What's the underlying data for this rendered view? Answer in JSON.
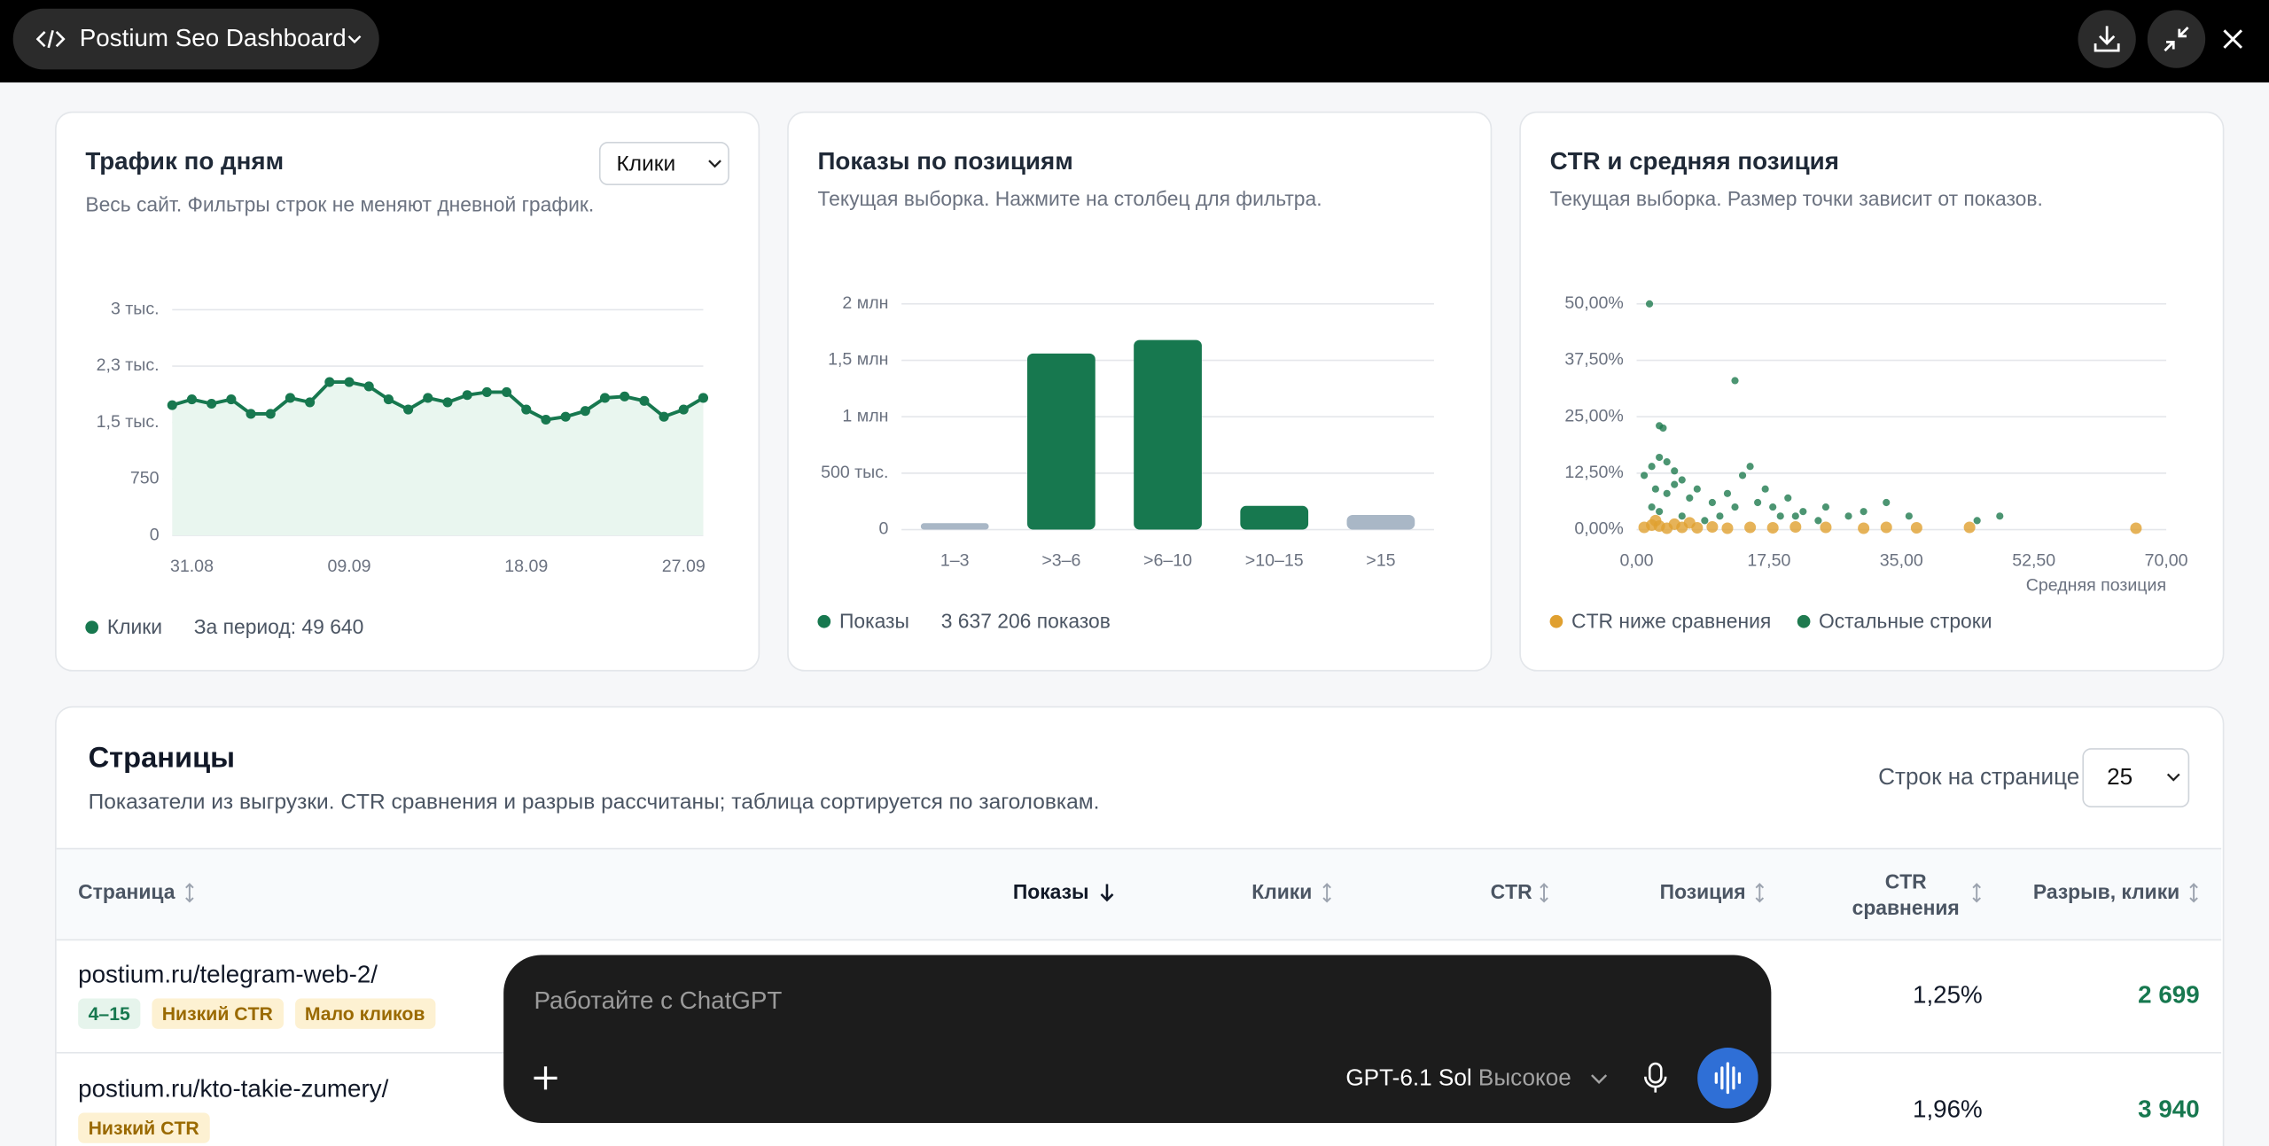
{
  "header": {
    "title": "Postium Seo Dashboard"
  },
  "cards": [
    {
      "title": "Трафик по дням",
      "subtitle": "Весь сайт. Фильтры строк не меняют дневной график.",
      "select": "Клики",
      "legend_total": "За период: 49 640"
    },
    {
      "title": "Показы по позициям",
      "subtitle": "Текущая выборка. Нажмите на столбец для фильтра.",
      "legend_total": "3 637 206 показов"
    },
    {
      "title": "CTR и средняя позиция",
      "subtitle": "Текущая выборка. Размер точки зависит от показов."
    }
  ],
  "chart_data": [
    {
      "type": "line",
      "categories": [
        null,
        "31.08",
        null,
        null,
        null,
        null,
        null,
        null,
        null,
        "09.09",
        null,
        null,
        null,
        null,
        null,
        null,
        null,
        null,
        "18.09",
        null,
        null,
        null,
        null,
        null,
        null,
        null,
        "27.09",
        null
      ],
      "series": [
        {
          "name": "Клики",
          "color": "#17784f",
          "values": [
            1731,
            1808,
            1750,
            1808,
            1615,
            1615,
            1827,
            1769,
            2038,
            2038,
            1981,
            1808,
            1673,
            1827,
            1769,
            1865,
            1904,
            1904,
            1673,
            1538,
            1577,
            1654,
            1827,
            1846,
            1788,
            1577,
            1673,
            1827
          ]
        }
      ],
      "ylim": [
        0,
        3000
      ],
      "yticks": [
        0,
        750,
        {
          "value": 1500,
          "label": "1,5 тыс."
        },
        {
          "value": 2250,
          "label": "2,3 тыс."
        },
        {
          "value": 3000,
          "label": "3 тыс."
        }
      ],
      "area_color": "#e9f6ef",
      "grid": true
    },
    {
      "type": "bar",
      "categories": [
        "1–3",
        ">3–6",
        ">6–10",
        ">10–15",
        ">15"
      ],
      "series": [
        {
          "name": "Показы",
          "color": "#17784f",
          "values": [
            57000,
            1560000,
            1680000,
            210000,
            130000
          ],
          "colors": [
            "#a9b7c6",
            "#17784f",
            "#17784f",
            "#17784f",
            "#a9b7c6"
          ]
        }
      ],
      "ylim": [
        0,
        2000000
      ],
      "yticks": [
        0,
        {
          "value": 500000,
          "label": "500 тыс."
        },
        {
          "value": 1000000,
          "label": "1 млн"
        },
        {
          "value": 1500000,
          "label": "1,5 млн"
        },
        {
          "value": 2000000,
          "label": "2 млн"
        }
      ],
      "grid": true
    },
    {
      "type": "scatter",
      "x_label": "Средняя позиция",
      "series": [
        {
          "name": "CTR ниже сравнения",
          "color": "#e0a030",
          "marker_size": 4,
          "x": [
            1,
            2,
            3,
            4,
            5,
            6,
            8,
            10,
            12,
            15,
            18,
            21,
            25,
            30,
            33,
            37,
            44,
            66,
            2.5,
            7
          ],
          "values": [
            0.5,
            1,
            0.8,
            0.3,
            1.2,
            0.5,
            0.4,
            0.6,
            0.3,
            0.5,
            0.4,
            0.6,
            0.5,
            0.3,
            0.5,
            0.4,
            0.5,
            0.3,
            2,
            1.5
          ]
        },
        {
          "name": "Остальные строки",
          "color": "#1f7a4f",
          "marker_size": 2.5,
          "x": [
            1.7,
            13,
            3,
            3.5,
            1,
            2,
            3,
            4,
            5,
            6,
            2.5,
            4,
            5,
            7,
            8,
            10,
            14,
            15,
            12,
            16,
            18,
            20,
            22,
            25,
            28,
            30,
            33,
            36,
            45,
            48,
            2,
            3,
            6,
            9,
            11,
            19,
            24,
            13,
            17,
            21
          ],
          "values": [
            50,
            33,
            23,
            22.5,
            12,
            14,
            16,
            15,
            13,
            11,
            9,
            8,
            10,
            7,
            9,
            6,
            12,
            14,
            8,
            6,
            5,
            7,
            4,
            5,
            3,
            4,
            6,
            3,
            2,
            3,
            5,
            4,
            3,
            2,
            3,
            3,
            2,
            5,
            9,
            3
          ]
        }
      ],
      "xlim": [
        0,
        70
      ],
      "xticks": [
        {
          "value": 0,
          "label": "0,00"
        },
        {
          "value": 17.5,
          "label": "17,50"
        },
        {
          "value": 35,
          "label": "35,00"
        },
        {
          "value": 52.5,
          "label": "52,50"
        },
        {
          "value": 70,
          "label": "70,00"
        }
      ],
      "ylim": [
        0,
        50
      ],
      "yticks": [
        {
          "value": 0,
          "label": "0,00%"
        },
        {
          "value": 12.5,
          "label": "12,50%"
        },
        {
          "value": 25,
          "label": "25,00%"
        },
        {
          "value": 37.5,
          "label": "37,50%"
        },
        {
          "value": 50,
          "label": "50,00%"
        }
      ],
      "grid": true
    }
  ],
  "table": {
    "title": "Страницы",
    "subtitle": "Показатели из выгрузки. CTR сравнения и разрыв рассчитаны; таблица сортируется по заголовкам.",
    "rows_per_page_label": "Строк на странице",
    "rows_per_page": "25",
    "columns": [
      "Страница",
      "Показы",
      "Клики",
      "CTR",
      "Позиция",
      "CTR сравнения",
      "Разрыв, клики"
    ],
    "rows": [
      {
        "page": "postium.ru/telegram-web-2/",
        "tags": [
          "4–15",
          "Низкий CTR",
          "Мало кликов"
        ],
        "ctr_compare": "1,25%",
        "gap": "2 699"
      },
      {
        "page": "postium.ru/kto-takie-zumery/",
        "tags": [
          "Низкий CTR"
        ],
        "ctr_compare": "1,96%",
        "gap": "3 940"
      }
    ]
  },
  "composer": {
    "placeholder": "Работайте с ChatGPT",
    "model": "GPT-6.1 Sol",
    "effort": "Высокое"
  }
}
